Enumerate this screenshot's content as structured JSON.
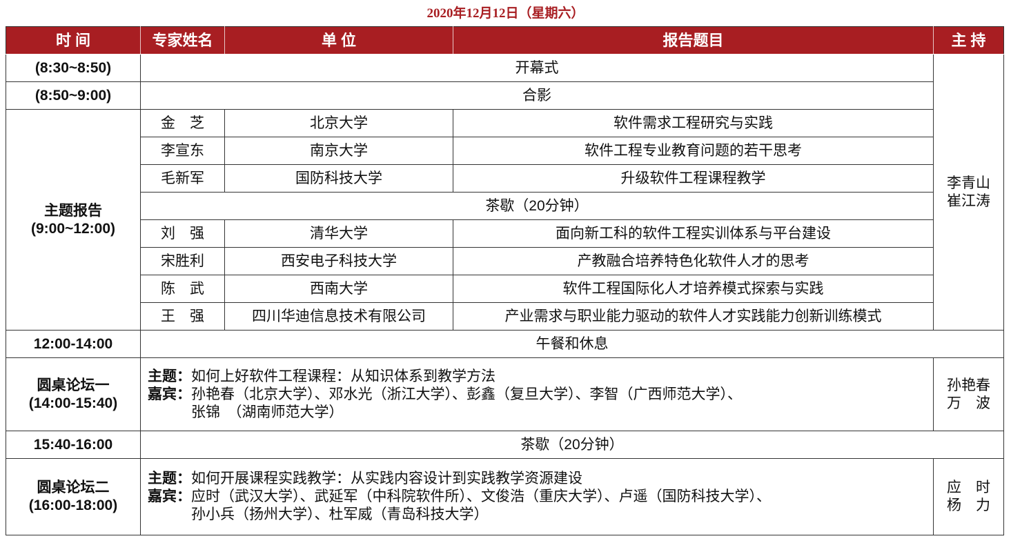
{
  "title": "2020年12月12日（星期六）",
  "headers": [
    "时 间",
    "专家姓名",
    "单 位",
    "报告题目",
    "主 持"
  ],
  "opening": {
    "time": "(8:30~8:50)",
    "text": "开幕式"
  },
  "photo": {
    "time": "(8:50~9:00)",
    "text": "合影"
  },
  "keynote": {
    "time_label": "主题报告",
    "time": "(9:00~12:00)",
    "host": "李青山\n崔江涛",
    "host_1": "李青山",
    "host_2": "崔江涛",
    "talks_a": [
      {
        "name": "金　芝",
        "unit": "北京大学",
        "topic": "软件需求工程研究与实践"
      },
      {
        "name": "李宣东",
        "unit": "南京大学",
        "topic": "软件工程专业教育问题的若干思考"
      },
      {
        "name": "毛新军",
        "unit": "国防科技大学",
        "topic": "升级软件工程课程教学"
      }
    ],
    "break": "茶歇（20分钟）",
    "talks_b": [
      {
        "name": "刘　强",
        "unit": "清华大学",
        "topic": "面向新工科的软件工程实训体系与平台建设"
      },
      {
        "name": "宋胜利",
        "unit": "西安电子科技大学",
        "topic": "产教融合培养特色化软件人才的思考"
      },
      {
        "name": "陈　武",
        "unit": "西南大学",
        "topic": "软件工程国际化人才培养模式探索与实践"
      },
      {
        "name": "王　强",
        "unit": "四川华迪信息技术有限公司",
        "topic": "产业需求与职业能力驱动的软件人才实践能力创新训练模式"
      }
    ]
  },
  "lunch": {
    "time": "12:00-14:00",
    "text": "午餐和休息"
  },
  "forum1": {
    "label": "圆桌论坛一",
    "time": "(14:00-15:40)",
    "topic_label": "主题：",
    "topic": "如何上好软件工程课程：从知识体系到教学方法",
    "guests_label": "嘉宾：",
    "guests_1": "孙艳春（北京大学）、邓水光（浙江大学）、彭鑫（复旦大学）、李智（广西师范大学）、",
    "guests_2": "张锦　（湖南师范大学）",
    "host_1": "孙艳春",
    "host_2": "万　波"
  },
  "tea2": {
    "time": "15:40-16:00",
    "text": "茶歇（20分钟）"
  },
  "forum2": {
    "label": "圆桌论坛二",
    "time": "(16:00-18:00)",
    "topic_label": "主题：",
    "topic": "如何开展课程实践教学：从实践内容设计到实践教学资源建设",
    "guests_label": "嘉宾：",
    "guests_1": "应时（武汉大学）、武延军（中科院软件所）、文俊浩（重庆大学）、卢遥（国防科技大学）、",
    "guests_2": "孙小兵（扬州大学）、杜军威（青岛科技大学）",
    "host_1": "应　时",
    "host_2": "杨　力"
  },
  "colors": {
    "header_bg": "#a81e22",
    "title": "#a81e22"
  }
}
